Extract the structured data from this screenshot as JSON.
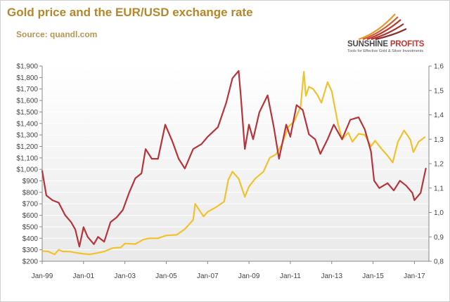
{
  "title": "Gold price and the EUR/USD  exchange rate",
  "source": "Source: quandl.com",
  "logo": {
    "name_part1": "SUNSHINE",
    "name_part2": "PROFITS",
    "tagline": "Tools for Effective Gold & Silver Investments"
  },
  "colors": {
    "gold": "#f2c12e",
    "eurusd": "#b6343a",
    "axis": "#888888"
  },
  "chart_data": {
    "type": "line",
    "x_tick_labels": [
      "Jan-99",
      "Jan-01",
      "Jan-03",
      "Jan-05",
      "Jan-07",
      "Jan-09",
      "Jan-11",
      "Jan-13",
      "Jan-15",
      "Jan-17"
    ],
    "x_range": [
      1999.0,
      2017.7
    ],
    "y_left": {
      "range": [
        200,
        1900
      ],
      "tick_labels": [
        "$200",
        "$300",
        "$400",
        "$500",
        "$600",
        "$700",
        "$800",
        "$900",
        "$1,000",
        "$1,100",
        "$1,200",
        "$1,300",
        "$1,400",
        "$1,500",
        "$1,600",
        "$1,700",
        "$1,800",
        "$1,900"
      ],
      "tick_values": [
        200,
        300,
        400,
        500,
        600,
        700,
        800,
        900,
        1000,
        1100,
        1200,
        1300,
        1400,
        1500,
        1600,
        1700,
        1800,
        1900
      ]
    },
    "y_right": {
      "range": [
        0.8,
        1.6
      ],
      "tick_labels": [
        "0,8",
        "0,9",
        "1,0",
        "1,1",
        "1,2",
        "1,3",
        "1,4",
        "1,5",
        "1,6"
      ],
      "tick_values": [
        0.8,
        0.9,
        1.0,
        1.1,
        1.2,
        1.3,
        1.4,
        1.5,
        1.6
      ]
    },
    "series": [
      {
        "axis": "left",
        "color": "#f2c12e",
        "x": [
          1999.0,
          1999.3,
          1999.6,
          1999.8,
          2000.0,
          2000.3,
          2000.6,
          2001.0,
          2001.3,
          2001.6,
          2002.0,
          2002.4,
          2002.8,
          2003.0,
          2003.5,
          2003.9,
          2004.2,
          2004.6,
          2005.0,
          2005.5,
          2005.9,
          2006.3,
          2006.4,
          2006.8,
          2007.0,
          2007.4,
          2007.8,
          2008.0,
          2008.2,
          2008.5,
          2008.8,
          2009.0,
          2009.3,
          2009.7,
          2010.0,
          2010.3,
          2010.6,
          2010.9,
          2011.2,
          2011.5,
          2011.65,
          2011.75,
          2011.9,
          2012.1,
          2012.3,
          2012.5,
          2012.8,
          2013.0,
          2013.3,
          2013.5,
          2013.8,
          2014.0,
          2014.3,
          2014.6,
          2014.9,
          2015.1,
          2015.4,
          2015.7,
          2015.95,
          2016.2,
          2016.5,
          2016.8,
          2016.95,
          2017.2,
          2017.5
        ],
        "y": [
          290,
          285,
          260,
          300,
          285,
          285,
          275,
          265,
          260,
          270,
          285,
          315,
          320,
          355,
          350,
          390,
          400,
          400,
          425,
          430,
          480,
          560,
          700,
          590,
          630,
          670,
          720,
          910,
          980,
          920,
          760,
          850,
          920,
          980,
          1100,
          1130,
          1220,
          1370,
          1420,
          1550,
          1850,
          1640,
          1720,
          1700,
          1650,
          1580,
          1760,
          1680,
          1400,
          1260,
          1320,
          1240,
          1310,
          1300,
          1200,
          1250,
          1180,
          1120,
          1060,
          1240,
          1340,
          1260,
          1150,
          1240,
          1280
        ]
      },
      {
        "axis": "right",
        "color": "#b6343a",
        "x": [
          1999.0,
          1999.2,
          1999.5,
          1999.8,
          2000.1,
          2000.4,
          2000.6,
          2000.8,
          2001.0,
          2001.2,
          2001.5,
          2001.7,
          2002.0,
          2002.3,
          2002.6,
          2002.9,
          2003.2,
          2003.5,
          2003.8,
          2004.0,
          2004.3,
          2004.6,
          2004.95,
          2005.3,
          2005.6,
          2005.9,
          2006.3,
          2006.7,
          2007.0,
          2007.5,
          2007.9,
          2008.2,
          2008.5,
          2008.6,
          2008.8,
          2009.0,
          2009.2,
          2009.5,
          2009.9,
          2010.2,
          2010.45,
          2010.8,
          2011.0,
          2011.3,
          2011.6,
          2011.9,
          2012.2,
          2012.45,
          2012.8,
          2013.1,
          2013.5,
          2013.9,
          2014.3,
          2014.6,
          2014.9,
          2015.05,
          2015.3,
          2015.7,
          2016.0,
          2016.3,
          2016.6,
          2016.9,
          2017.0,
          2017.3,
          2017.55
        ],
        "y": [
          1.17,
          1.07,
          1.05,
          1.04,
          0.99,
          0.96,
          0.93,
          0.86,
          0.94,
          0.9,
          0.87,
          0.9,
          0.88,
          0.96,
          0.98,
          1.01,
          1.08,
          1.14,
          1.16,
          1.26,
          1.22,
          1.22,
          1.36,
          1.29,
          1.22,
          1.18,
          1.26,
          1.28,
          1.31,
          1.35,
          1.45,
          1.55,
          1.58,
          1.48,
          1.26,
          1.36,
          1.3,
          1.41,
          1.48,
          1.35,
          1.22,
          1.36,
          1.31,
          1.44,
          1.42,
          1.32,
          1.3,
          1.24,
          1.3,
          1.36,
          1.3,
          1.38,
          1.39,
          1.34,
          1.25,
          1.13,
          1.1,
          1.12,
          1.09,
          1.13,
          1.11,
          1.08,
          1.05,
          1.08,
          1.18
        ]
      }
    ],
    "grid": "horizontal",
    "legend": "none"
  }
}
